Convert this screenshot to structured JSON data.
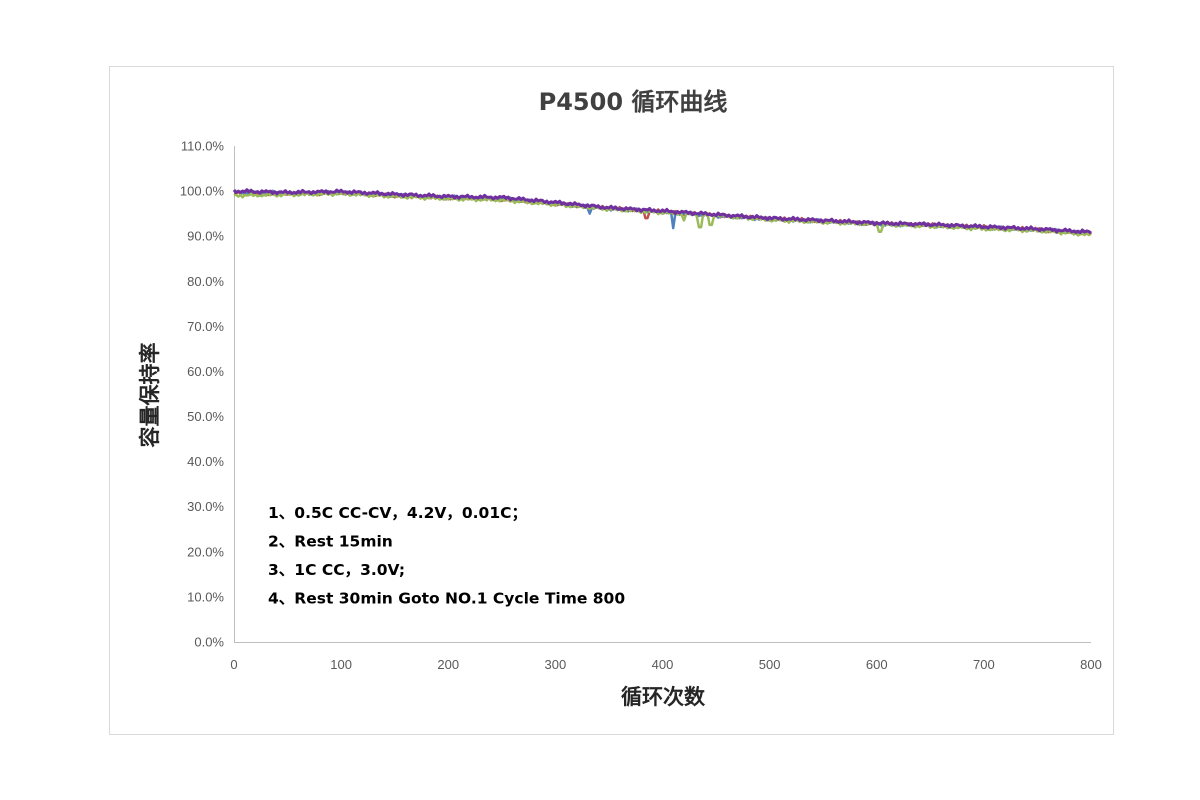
{
  "chart_data": {
    "type": "line",
    "title": "P4500 循环曲线",
    "xlabel": "循环次数",
    "ylabel": "容量保持率",
    "xlim": [
      0,
      800
    ],
    "ylim": [
      0,
      1.1
    ],
    "x_ticks": [
      "0",
      "100",
      "200",
      "300",
      "400",
      "500",
      "600",
      "700",
      "800"
    ],
    "y_ticks": [
      "0.0%",
      "10.0%",
      "20.0%",
      "30.0%",
      "40.0%",
      "50.0%",
      "60.0%",
      "70.0%",
      "80.0%",
      "90.0%",
      "100.0%",
      "110.0%"
    ],
    "grid": false,
    "legend": "none",
    "annotations": [
      "1、0.5C  CC-CV，4.2V，0.01C；",
      "2、Rest  15min",
      "3、1C  CC，3.0V;",
      "4、Rest  30min  Goto NO.1 Cycle Time 800"
    ],
    "series": [
      {
        "color": "#c0504d",
        "x": [
          0,
          50,
          100,
          150,
          200,
          250,
          300,
          350,
          400,
          450,
          500,
          550,
          600,
          650,
          700,
          750,
          800
        ],
        "y": [
          0.995,
          0.994,
          0.996,
          0.99,
          0.985,
          0.982,
          0.972,
          0.962,
          0.955,
          0.946,
          0.939,
          0.934,
          0.928,
          0.925,
          0.92,
          0.915,
          0.905
        ],
        "dips": [
          [
            385,
            0.94
          ]
        ]
      },
      {
        "color": "#4f81bd",
        "x": [
          0,
          50,
          100,
          150,
          200,
          250,
          300,
          350,
          400,
          450,
          500,
          550,
          600,
          650,
          700,
          750,
          800
        ],
        "y": [
          0.998,
          0.996,
          0.997,
          0.991,
          0.986,
          0.984,
          0.973,
          0.961,
          0.954,
          0.945,
          0.938,
          0.933,
          0.927,
          0.924,
          0.919,
          0.914,
          0.908
        ],
        "dips": [
          [
            332,
            0.95
          ],
          [
            410,
            0.918
          ]
        ]
      },
      {
        "color": "#9bbb59",
        "x": [
          0,
          50,
          100,
          150,
          200,
          250,
          300,
          350,
          400,
          450,
          500,
          550,
          600,
          650,
          700,
          750,
          800
        ],
        "y": [
          0.99,
          0.992,
          0.994,
          0.988,
          0.983,
          0.98,
          0.97,
          0.96,
          0.952,
          0.946,
          0.936,
          0.931,
          0.926,
          0.922,
          0.916,
          0.912,
          0.903
        ],
        "dips": [
          [
            420,
            0.935
          ],
          [
            435,
            0.92
          ],
          [
            445,
            0.925
          ],
          [
            603,
            0.91
          ]
        ]
      },
      {
        "color": "#7030a0",
        "x": [
          0,
          50,
          100,
          150,
          200,
          250,
          300,
          350,
          400,
          450,
          500,
          550,
          600,
          650,
          700,
          750,
          800
        ],
        "y": [
          1.0,
          0.997,
          0.999,
          0.993,
          0.988,
          0.986,
          0.975,
          0.963,
          0.956,
          0.948,
          0.94,
          0.935,
          0.929,
          0.926,
          0.921,
          0.916,
          0.909
        ],
        "dips": []
      }
    ]
  }
}
